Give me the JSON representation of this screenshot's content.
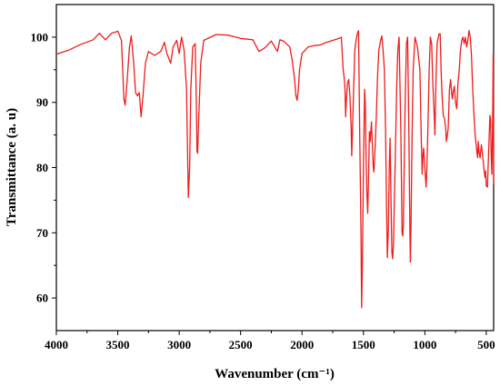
{
  "chart_data": {
    "type": "line",
    "title": "",
    "xlabel": "Wavenumber (cm⁻¹)",
    "ylabel": "Transmittance (a. u)",
    "xlim": [
      4000,
      440
    ],
    "ylim": [
      55,
      105
    ],
    "x_ticks": [
      4000,
      3500,
      3000,
      2500,
      2000,
      1500,
      1000,
      500
    ],
    "y_ticks": [
      60,
      70,
      80,
      90,
      100
    ],
    "grid": false,
    "legend": "none",
    "series": [
      {
        "color": "#ee1c1c",
        "points": [
          [
            4000,
            97.4
          ],
          [
            3900,
            98.0
          ],
          [
            3800,
            98.9
          ],
          [
            3700,
            99.6
          ],
          [
            3650,
            100.6
          ],
          [
            3600,
            99.6
          ],
          [
            3550,
            100.6
          ],
          [
            3500,
            100.9
          ],
          [
            3470,
            99.5
          ],
          [
            3450,
            90.5
          ],
          [
            3440,
            89.6
          ],
          [
            3425,
            93
          ],
          [
            3405,
            98.5
          ],
          [
            3390,
            100.2
          ],
          [
            3370,
            96
          ],
          [
            3355,
            91.5
          ],
          [
            3340,
            91
          ],
          [
            3325,
            91.5
          ],
          [
            3310,
            87.8
          ],
          [
            3295,
            91
          ],
          [
            3275,
            96
          ],
          [
            3250,
            97.8
          ],
          [
            3200,
            97.2
          ],
          [
            3150,
            97.8
          ],
          [
            3120,
            99.2
          ],
          [
            3100,
            97.5
          ],
          [
            3070,
            96
          ],
          [
            3050,
            98.5
          ],
          [
            3020,
            99.5
          ],
          [
            3000,
            97.5
          ],
          [
            2980,
            100
          ],
          [
            2960,
            98
          ],
          [
            2940,
            92
          ],
          [
            2930,
            80
          ],
          [
            2925,
            75.4
          ],
          [
            2915,
            80
          ],
          [
            2905,
            92
          ],
          [
            2890,
            98.5
          ],
          [
            2870,
            99
          ],
          [
            2860,
            90
          ],
          [
            2855,
            82.5
          ],
          [
            2850,
            82.2
          ],
          [
            2840,
            88
          ],
          [
            2825,
            96
          ],
          [
            2800,
            99.5
          ],
          [
            2700,
            100.4
          ],
          [
            2600,
            100.3
          ],
          [
            2500,
            99.8
          ],
          [
            2400,
            99.6
          ],
          [
            2350,
            97.8
          ],
          [
            2300,
            98.4
          ],
          [
            2250,
            99.4
          ],
          [
            2200,
            97.8
          ],
          [
            2180,
            99.6
          ],
          [
            2150,
            99.4
          ],
          [
            2100,
            98.5
          ],
          [
            2080,
            96.5
          ],
          [
            2060,
            93.5
          ],
          [
            2050,
            91
          ],
          [
            2040,
            90.3
          ],
          [
            2030,
            92
          ],
          [
            2020,
            95
          ],
          [
            2000,
            97.5
          ],
          [
            1950,
            98.5
          ],
          [
            1900,
            98.7
          ],
          [
            1850,
            98.8
          ],
          [
            1800,
            99.2
          ],
          [
            1750,
            99.5
          ],
          [
            1700,
            99.8
          ],
          [
            1680,
            100
          ],
          [
            1665,
            95
          ],
          [
            1655,
            93.5
          ],
          [
            1650,
            92
          ],
          [
            1645,
            87.8
          ],
          [
            1640,
            90
          ],
          [
            1630,
            93
          ],
          [
            1620,
            93.5
          ],
          [
            1610,
            91
          ],
          [
            1600,
            86
          ],
          [
            1595,
            81.8
          ],
          [
            1590,
            85
          ],
          [
            1580,
            92
          ],
          [
            1570,
            98
          ],
          [
            1560,
            99.5
          ],
          [
            1550,
            100.5
          ],
          [
            1540,
            101
          ],
          [
            1530,
            85
          ],
          [
            1520,
            70
          ],
          [
            1515,
            58.5
          ],
          [
            1508,
            66
          ],
          [
            1500,
            80
          ],
          [
            1490,
            92
          ],
          [
            1485,
            90
          ],
          [
            1478,
            81
          ],
          [
            1472,
            76
          ],
          [
            1465,
            73
          ],
          [
            1458,
            79
          ],
          [
            1452,
            85.5
          ],
          [
            1445,
            84
          ],
          [
            1435,
            87
          ],
          [
            1420,
            80
          ],
          [
            1415,
            79.3
          ],
          [
            1405,
            83
          ],
          [
            1395,
            88
          ],
          [
            1385,
            94
          ],
          [
            1375,
            98
          ],
          [
            1360,
            99.5
          ],
          [
            1350,
            100.2
          ],
          [
            1340,
            98
          ],
          [
            1330,
            95
          ],
          [
            1320,
            86
          ],
          [
            1312,
            74
          ],
          [
            1305,
            66.2
          ],
          [
            1298,
            70
          ],
          [
            1290,
            80
          ],
          [
            1283,
            84.5
          ],
          [
            1275,
            74
          ],
          [
            1268,
            67
          ],
          [
            1262,
            66
          ],
          [
            1255,
            68.5
          ],
          [
            1248,
            75
          ],
          [
            1240,
            82
          ],
          [
            1230,
            92
          ],
          [
            1220,
            98
          ],
          [
            1210,
            100
          ],
          [
            1195,
            85
          ],
          [
            1185,
            70
          ],
          [
            1180,
            69.5
          ],
          [
            1175,
            71
          ],
          [
            1168,
            80
          ],
          [
            1160,
            90
          ],
          [
            1150,
            99
          ],
          [
            1140,
            100
          ],
          [
            1130,
            85
          ],
          [
            1122,
            70
          ],
          [
            1118,
            65.5
          ],
          [
            1112,
            72
          ],
          [
            1105,
            84
          ],
          [
            1095,
            95
          ],
          [
            1080,
            100
          ],
          [
            1060,
            98.5
          ],
          [
            1040,
            95
          ],
          [
            1030,
            85
          ],
          [
            1022,
            79
          ],
          [
            1015,
            82
          ],
          [
            1010,
            83
          ],
          [
            1000,
            80
          ],
          [
            995,
            78.5
          ],
          [
            990,
            77
          ],
          [
            985,
            79
          ],
          [
            975,
            86
          ],
          [
            965,
            95
          ],
          [
            955,
            100
          ],
          [
            945,
            99
          ],
          [
            935,
            93
          ],
          [
            925,
            88.5
          ],
          [
            918,
            85
          ],
          [
            910,
            93
          ],
          [
            900,
            99
          ],
          [
            885,
            100.5
          ],
          [
            875,
            100.5
          ],
          [
            868,
            95
          ],
          [
            860,
            91
          ],
          [
            850,
            88
          ],
          [
            840,
            87.5
          ],
          [
            830,
            86
          ],
          [
            825,
            84
          ],
          [
            820,
            84.5
          ],
          [
            810,
            86
          ],
          [
            800,
            92
          ],
          [
            790,
            93.5
          ],
          [
            780,
            91
          ],
          [
            775,
            90.5
          ],
          [
            770,
            91.5
          ],
          [
            760,
            92.5
          ],
          [
            750,
            90
          ],
          [
            740,
            89
          ],
          [
            730,
            93
          ],
          [
            720,
            95
          ],
          [
            710,
            98
          ],
          [
            700,
            99.5
          ],
          [
            690,
            100
          ],
          [
            680,
            99
          ],
          [
            670,
            100
          ],
          [
            660,
            98.5
          ],
          [
            650,
            99.5
          ],
          [
            640,
            101
          ],
          [
            630,
            100
          ],
          [
            620,
            97
          ],
          [
            610,
            92
          ],
          [
            600,
            88
          ],
          [
            590,
            85
          ],
          [
            580,
            83
          ],
          [
            570,
            81.5
          ],
          [
            565,
            84
          ],
          [
            560,
            82.5
          ],
          [
            550,
            81.5
          ],
          [
            540,
            83.5
          ],
          [
            530,
            82
          ],
          [
            520,
            80
          ],
          [
            510,
            78.5
          ],
          [
            505,
            79.5
          ],
          [
            500,
            77.2
          ],
          [
            490,
            77
          ],
          [
            485,
            80
          ],
          [
            478,
            84
          ],
          [
            470,
            88
          ],
          [
            465,
            87.5
          ],
          [
            460,
            82
          ],
          [
            455,
            79
          ],
          [
            450,
            84
          ],
          [
            447,
            90
          ],
          [
            444,
            97.5
          ],
          [
            442,
            93
          ],
          [
            440,
            77.5
          ]
        ]
      }
    ]
  }
}
